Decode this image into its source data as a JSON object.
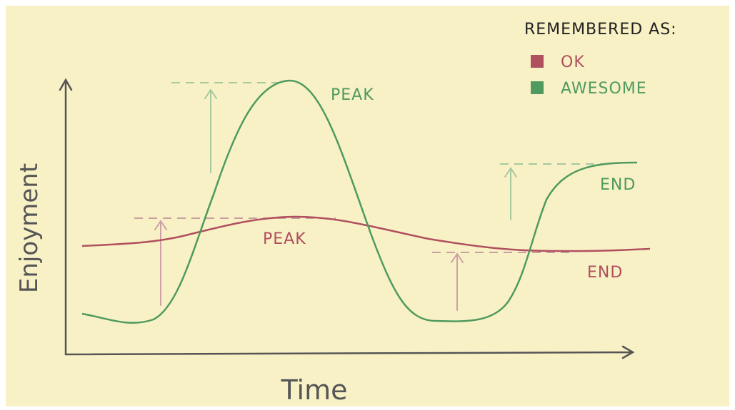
{
  "legend": {
    "title": "REMEMBERED AS:",
    "items": [
      "OK",
      "AWESOME"
    ]
  },
  "axes": {
    "y": "Enjoyment",
    "x": "Time"
  },
  "labels": {
    "awesome_peak": "PEAK",
    "ok_peak": "PEAK",
    "awesome_end": "END",
    "ok_end": "END"
  }
}
